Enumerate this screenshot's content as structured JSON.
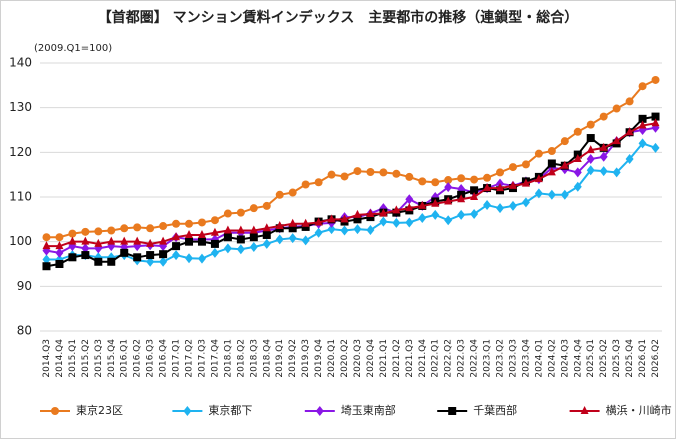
{
  "chart_data": {
    "type": "line",
    "title": "【首都圏】 マンション賃料インデックス　主要都市の推移（連鎖型・総合）",
    "subtitle": "(2009.Q1=100)",
    "categories": [
      "2014.Q3",
      "2014.Q4",
      "2015.Q1",
      "2015.Q2",
      "2015.Q3",
      "2015.Q4",
      "2016.Q1",
      "2016.Q2",
      "2016.Q3",
      "2016.Q4",
      "2017.Q1",
      "2017.Q2",
      "2017.Q3",
      "2017.Q4",
      "2018.Q1",
      "2018.Q2",
      "2018.Q3",
      "2018.Q4",
      "2019.Q1",
      "2019.Q2",
      "2019.Q3",
      "2019.Q4",
      "2020.Q1",
      "2020.Q2",
      "2020.Q3",
      "2020.Q4",
      "2021.Q1",
      "2021.Q2",
      "2021.Q3",
      "2021.Q4",
      "2022.Q1",
      "2022.Q2",
      "2022.Q3",
      "2022.Q4",
      "2023.Q1",
      "2023.Q2",
      "2023.Q3",
      "2023.Q4",
      "2024.Q1",
      "2024.Q2",
      "2024.Q3",
      "2024.Q4",
      "2025.Q1",
      "2025.Q2",
      "2025.Q3",
      "2025.Q4",
      "2026.Q1",
      "2026.Q2"
    ],
    "series": [
      {
        "name": "東京23区",
        "color": "#e97a1f",
        "marker": "circle",
        "values": [
          101,
          101,
          101.8,
          102.2,
          102.3,
          102.5,
          103,
          103.2,
          103,
          103.5,
          104,
          104,
          104.3,
          104.8,
          106.3,
          106.5,
          107.5,
          108,
          110.5,
          111,
          112.8,
          113.3,
          115,
          114.6,
          115.8,
          115.6,
          115.5,
          115.2,
          114.5,
          113.5,
          113.3,
          113.8,
          114.2,
          113.9,
          114.3,
          115.5,
          116.7,
          117.3,
          119.7,
          120.3,
          122.5,
          124.6,
          126.2,
          128,
          129.8,
          131.4,
          134.8,
          136.2
        ]
      },
      {
        "name": "東京都下",
        "color": "#1fb3f0",
        "marker": "diamond",
        "values": [
          96,
          96,
          97,
          97,
          96.5,
          96.5,
          97,
          95.8,
          95.5,
          95.5,
          97,
          96.3,
          96.2,
          97.5,
          98.5,
          98.3,
          98.8,
          99.5,
          100.5,
          100.8,
          100.3,
          102,
          102.8,
          102.5,
          102.8,
          102.6,
          104.5,
          104.2,
          104.3,
          105.3,
          106,
          104.8,
          106,
          106.2,
          108.2,
          107.5,
          108,
          108.8,
          110.8,
          110.5,
          110.5,
          112.3,
          116,
          115.8,
          115.5,
          118.5,
          122,
          121
        ]
      },
      {
        "name": "埼玉東南部",
        "color": "#8a17e6",
        "marker": "diamond",
        "values": [
          98,
          97.5,
          99,
          98.5,
          98.5,
          99,
          98.8,
          99,
          99.2,
          99,
          101,
          100.5,
          100.5,
          100.5,
          102,
          102,
          102,
          102.5,
          103,
          103.3,
          103.5,
          104,
          104.2,
          105.5,
          105.5,
          106.3,
          107.5,
          106.5,
          109.5,
          108,
          110,
          112.2,
          111.8,
          111,
          112,
          113,
          112.5,
          113.5,
          114,
          116.5,
          116.2,
          115.5,
          118.5,
          119,
          122.5,
          124.5,
          125,
          125.5
        ]
      },
      {
        "name": "千葉西部",
        "color": "#000000",
        "marker": "square",
        "values": [
          94.5,
          95,
          96.5,
          97,
          95.5,
          95.5,
          97.5,
          96.5,
          97,
          97.2,
          99,
          100,
          100,
          99.5,
          101,
          100.5,
          101,
          101.5,
          103,
          103,
          103.3,
          104.5,
          105,
          104.5,
          105,
          105.5,
          106.5,
          106.5,
          107,
          108,
          109,
          109.5,
          110.5,
          111.5,
          112,
          111.5,
          112,
          113.5,
          114.5,
          117.5,
          117,
          119.5,
          123.2,
          121,
          122,
          124.5,
          127.5,
          128
        ]
      },
      {
        "name": "横浜・川崎市",
        "color": "#c0001a",
        "marker": "triangle",
        "values": [
          99,
          99,
          100,
          100,
          99.5,
          100,
          100,
          100,
          99.5,
          100,
          101,
          101.5,
          101.5,
          102,
          102.5,
          102.5,
          102.5,
          103,
          103.5,
          104,
          104,
          104.3,
          105,
          105,
          106,
          106.2,
          106.3,
          107,
          107.5,
          108,
          108.5,
          109,
          109.5,
          110,
          112,
          112,
          112.5,
          113,
          114,
          115.5,
          117,
          118.5,
          120.5,
          121,
          122.5,
          124.5,
          126,
          126.5
        ]
      }
    ],
    "ylim": [
      80,
      140
    ],
    "yticks": [
      80,
      90,
      100,
      110,
      120,
      130,
      140
    ],
    "grid": true,
    "legend": "bottom"
  }
}
